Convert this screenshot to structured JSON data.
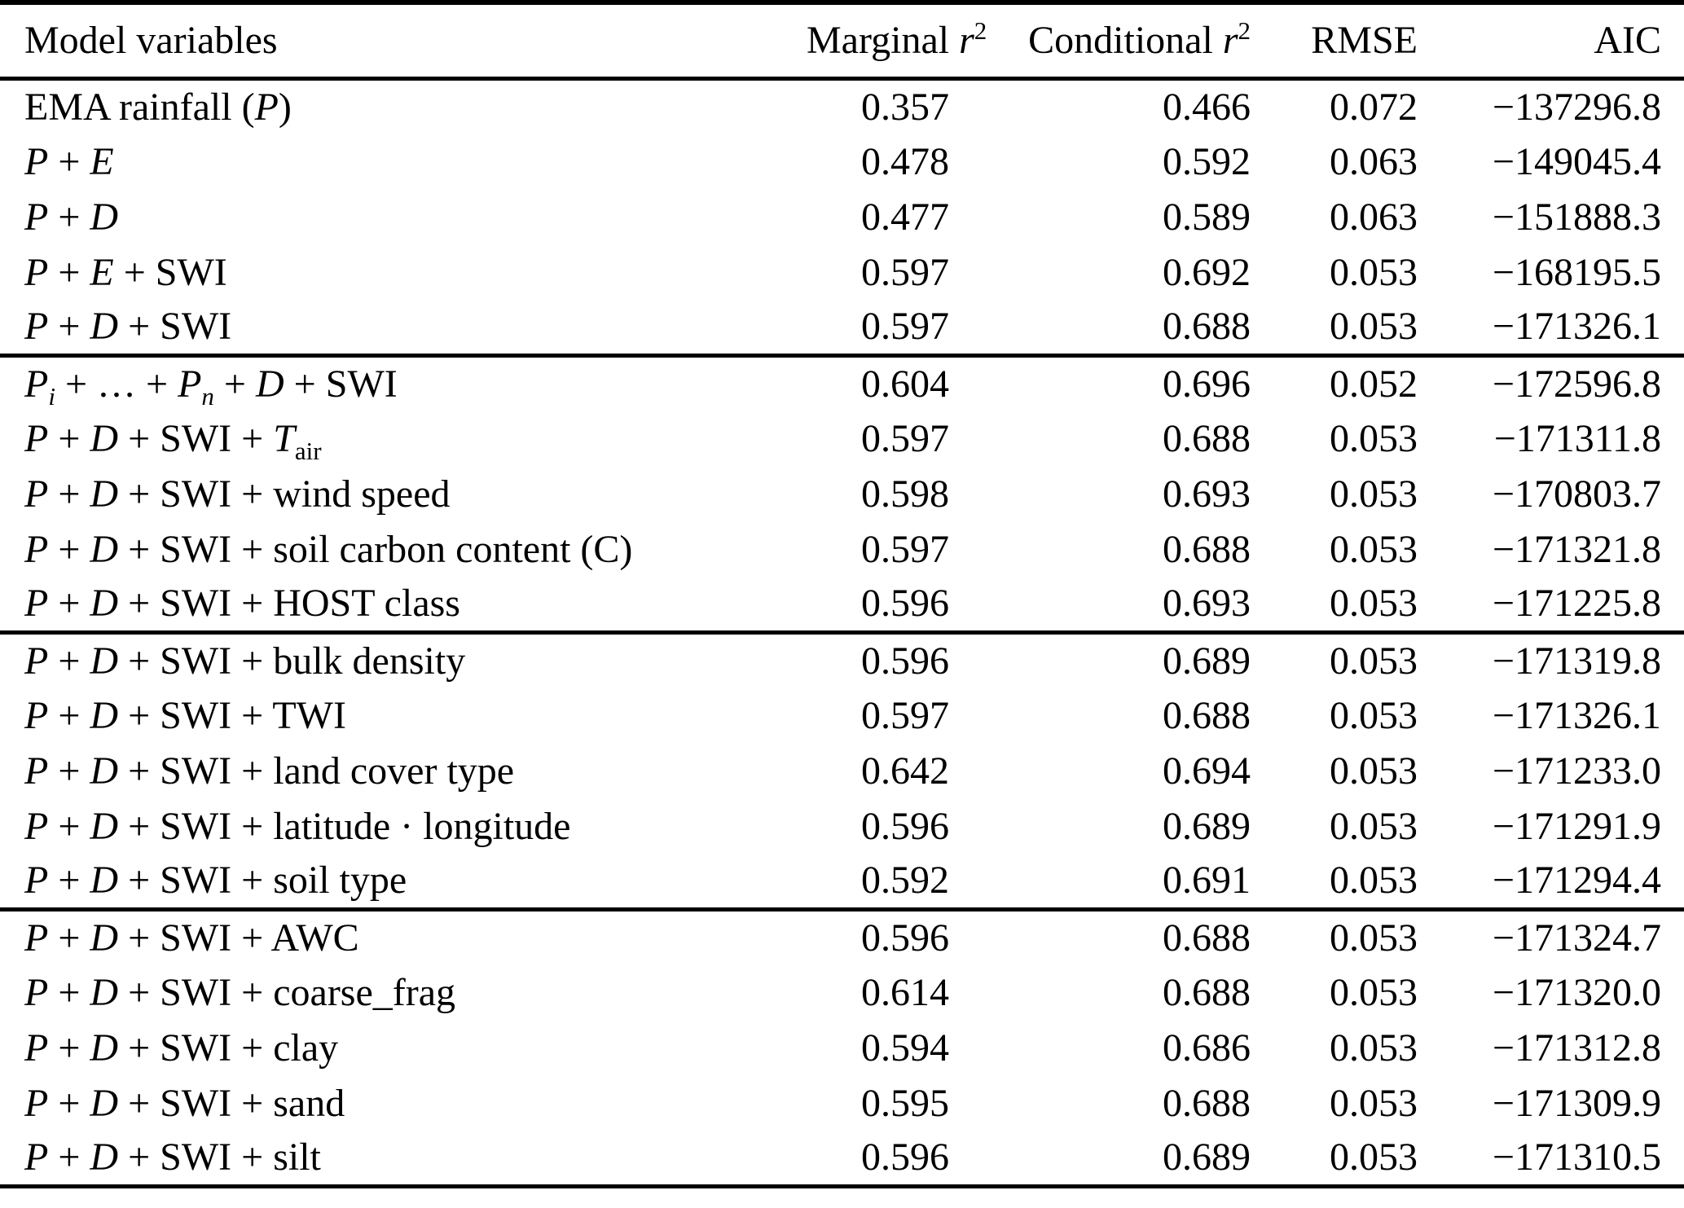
{
  "page": {
    "background_color": "#ffffff",
    "text_color": "#000000",
    "rule_color": "#000000"
  },
  "table": {
    "columns": [
      {
        "key": "model",
        "label": "Model variables"
      },
      {
        "key": "marginal_r2",
        "label": [
          "Marginal ",
          {
            "t": "r",
            "s": "i"
          },
          {
            "t": "2",
            "s": "sup"
          }
        ]
      },
      {
        "key": "conditional_r2",
        "label": [
          "Conditional ",
          {
            "t": "r",
            "s": "i"
          },
          {
            "t": "2",
            "s": "sup"
          }
        ]
      },
      {
        "key": "rmse",
        "label": "RMSE"
      },
      {
        "key": "aic",
        "label": "AIC"
      }
    ],
    "groups": [
      {
        "rows": [
          {
            "model": [
              "EMA rainfall (",
              {
                "t": "P",
                "s": "i"
              },
              ")"
            ],
            "marginal_r2": "0.357",
            "conditional_r2": "0.466",
            "rmse": "0.072",
            "aic": "−137296.8"
          },
          {
            "model": [
              {
                "t": "P",
                "s": "i"
              },
              " + ",
              {
                "t": "E",
                "s": "i"
              }
            ],
            "marginal_r2": "0.478",
            "conditional_r2": "0.592",
            "rmse": "0.063",
            "aic": "−149045.4"
          },
          {
            "model": [
              {
                "t": "P",
                "s": "i"
              },
              " + ",
              {
                "t": "D",
                "s": "i"
              }
            ],
            "marginal_r2": "0.477",
            "conditional_r2": "0.589",
            "rmse": "0.063",
            "aic": "−151888.3"
          },
          {
            "model": [
              {
                "t": "P",
                "s": "i"
              },
              " + ",
              {
                "t": "E",
                "s": "i"
              },
              " + SWI"
            ],
            "marginal_r2": "0.597",
            "conditional_r2": "0.692",
            "rmse": "0.053",
            "aic": "−168195.5"
          },
          {
            "model": [
              {
                "t": "P",
                "s": "i"
              },
              " + ",
              {
                "t": "D",
                "s": "i"
              },
              " + SWI"
            ],
            "marginal_r2": "0.597",
            "conditional_r2": "0.688",
            "rmse": "0.053",
            "aic": "−171326.1"
          }
        ]
      },
      {
        "rows": [
          {
            "model": [
              {
                "t": "P",
                "s": "i"
              },
              {
                "t": "i",
                "s": "subi"
              },
              " + … + ",
              {
                "t": "P",
                "s": "i"
              },
              {
                "t": "n",
                "s": "subi"
              },
              " + ",
              {
                "t": "D",
                "s": "i"
              },
              " + SWI"
            ],
            "marginal_r2": "0.604",
            "conditional_r2": "0.696",
            "rmse": "0.052",
            "aic": "−172596.8"
          },
          {
            "model": [
              {
                "t": "P",
                "s": "i"
              },
              " + ",
              {
                "t": "D",
                "s": "i"
              },
              " + SWI + ",
              {
                "t": "T",
                "s": "i"
              },
              {
                "t": "air",
                "s": "sub"
              }
            ],
            "marginal_r2": "0.597",
            "conditional_r2": "0.688",
            "rmse": "0.053",
            "aic": "−171311.8"
          },
          {
            "model": [
              {
                "t": "P",
                "s": "i"
              },
              " + ",
              {
                "t": "D",
                "s": "i"
              },
              " + SWI + wind speed"
            ],
            "marginal_r2": "0.598",
            "conditional_r2": "0.693",
            "rmse": "0.053",
            "aic": "−170803.7"
          },
          {
            "model": [
              {
                "t": "P",
                "s": "i"
              },
              " + ",
              {
                "t": "D",
                "s": "i"
              },
              " + SWI + soil carbon content (C)"
            ],
            "marginal_r2": "0.597",
            "conditional_r2": "0.688",
            "rmse": "0.053",
            "aic": "−171321.8"
          },
          {
            "model": [
              {
                "t": "P",
                "s": "i"
              },
              " + ",
              {
                "t": "D",
                "s": "i"
              },
              " + SWI + HOST class"
            ],
            "marginal_r2": "0.596",
            "conditional_r2": "0.693",
            "rmse": "0.053",
            "aic": "−171225.8"
          }
        ]
      },
      {
        "rows": [
          {
            "model": [
              {
                "t": "P",
                "s": "i"
              },
              " + ",
              {
                "t": "D",
                "s": "i"
              },
              " + SWI + bulk density"
            ],
            "marginal_r2": "0.596",
            "conditional_r2": "0.689",
            "rmse": "0.053",
            "aic": "−171319.8"
          },
          {
            "model": [
              {
                "t": "P",
                "s": "i"
              },
              " + ",
              {
                "t": "D",
                "s": "i"
              },
              " + SWI + TWI"
            ],
            "marginal_r2": "0.597",
            "conditional_r2": "0.688",
            "rmse": "0.053",
            "aic": "−171326.1"
          },
          {
            "model": [
              {
                "t": "P",
                "s": "i"
              },
              " + ",
              {
                "t": "D",
                "s": "i"
              },
              " + SWI + land cover type"
            ],
            "marginal_r2": "0.642",
            "conditional_r2": "0.694",
            "rmse": "0.053",
            "aic": "−171233.0"
          },
          {
            "model": [
              {
                "t": "P",
                "s": "i"
              },
              " + ",
              {
                "t": "D",
                "s": "i"
              },
              " + SWI + latitude · longitude"
            ],
            "marginal_r2": "0.596",
            "conditional_r2": "0.689",
            "rmse": "0.053",
            "aic": "−171291.9"
          },
          {
            "model": [
              {
                "t": "P",
                "s": "i"
              },
              " + ",
              {
                "t": "D",
                "s": "i"
              },
              " + SWI + soil type"
            ],
            "marginal_r2": "0.592",
            "conditional_r2": "0.691",
            "rmse": "0.053",
            "aic": "−171294.4"
          }
        ]
      },
      {
        "rows": [
          {
            "model": [
              {
                "t": "P",
                "s": "i"
              },
              " + ",
              {
                "t": "D",
                "s": "i"
              },
              " + SWI + AWC"
            ],
            "marginal_r2": "0.596",
            "conditional_r2": "0.688",
            "rmse": "0.053",
            "aic": "−171324.7"
          },
          {
            "model": [
              {
                "t": "P",
                "s": "i"
              },
              " + ",
              {
                "t": "D",
                "s": "i"
              },
              " + SWI + coarse_frag"
            ],
            "marginal_r2": "0.614",
            "conditional_r2": "0.688",
            "rmse": "0.053",
            "aic": "−171320.0"
          },
          {
            "model": [
              {
                "t": "P",
                "s": "i"
              },
              " + ",
              {
                "t": "D",
                "s": "i"
              },
              " + SWI + clay"
            ],
            "marginal_r2": "0.594",
            "conditional_r2": "0.686",
            "rmse": "0.053",
            "aic": "−171312.8"
          },
          {
            "model": [
              {
                "t": "P",
                "s": "i"
              },
              " + ",
              {
                "t": "D",
                "s": "i"
              },
              " + SWI + sand"
            ],
            "marginal_r2": "0.595",
            "conditional_r2": "0.688",
            "rmse": "0.053",
            "aic": "−171309.9"
          },
          {
            "model": [
              {
                "t": "P",
                "s": "i"
              },
              " + ",
              {
                "t": "D",
                "s": "i"
              },
              " + SWI + silt"
            ],
            "marginal_r2": "0.596",
            "conditional_r2": "0.689",
            "rmse": "0.053",
            "aic": "−171310.5"
          }
        ]
      }
    ]
  }
}
